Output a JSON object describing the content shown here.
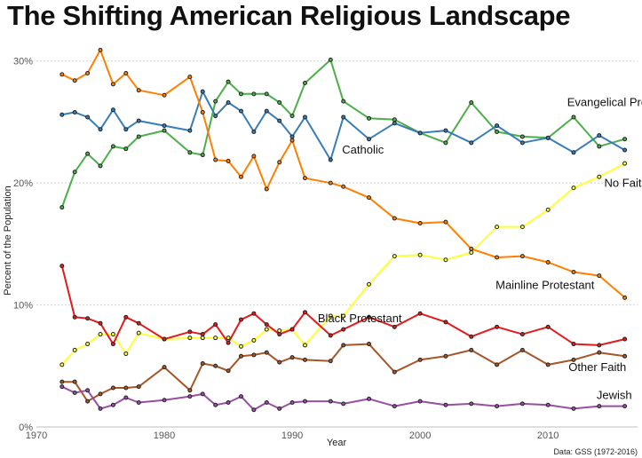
{
  "chart_data": {
    "type": "line",
    "title": "The Shifting American Religious Landscape",
    "xlabel": "Year",
    "ylabel": "Percent of the Population",
    "xlim": [
      1970,
      2017
    ],
    "ylim": [
      0,
      31
    ],
    "x_ticks": [
      {
        "value": 1970,
        "label": "1970"
      },
      {
        "value": 1980,
        "label": "1980"
      },
      {
        "value": 1990,
        "label": "1990"
      },
      {
        "value": 2000,
        "label": "2000"
      },
      {
        "value": 2010,
        "label": "2010"
      }
    ],
    "y_ticks": [
      {
        "value": 0,
        "label": "0%"
      },
      {
        "value": 10,
        "label": "10%"
      },
      {
        "value": 20,
        "label": "20%"
      },
      {
        "value": 30,
        "label": "30%"
      }
    ],
    "caption": "Data: GSS (1972-2016)",
    "legend": "direct labels",
    "x": [
      1972,
      1973,
      1974,
      1975,
      1976,
      1977,
      1978,
      1980,
      1982,
      1983,
      1984,
      1985,
      1986,
      1987,
      1988,
      1989,
      1990,
      1991,
      1993,
      1994,
      1996,
      1998,
      2000,
      2002,
      2004,
      2006,
      2008,
      2010,
      2012,
      2014,
      2016
    ],
    "series": [
      {
        "name": "Evangelical Protestant",
        "color": "#4daf4a",
        "label_year": 2011.5,
        "label_value": 26.3,
        "values": [
          18.0,
          20.9,
          22.4,
          21.4,
          23.0,
          22.8,
          23.8,
          24.3,
          22.5,
          22.3,
          26.7,
          28.3,
          27.3,
          27.3,
          27.3,
          26.6,
          25.5,
          28.2,
          30.1,
          26.7,
          25.3,
          25.2,
          24.1,
          23.3,
          26.6,
          24.2,
          23.8,
          23.7,
          25.4,
          23.0,
          23.6
        ]
      },
      {
        "name": "Catholic",
        "color": "#377eb8",
        "label_year": 1993.9,
        "label_value": 22.4,
        "values": [
          25.6,
          25.8,
          25.4,
          24.4,
          26.0,
          24.4,
          25.1,
          24.7,
          24.3,
          27.5,
          25.5,
          26.6,
          25.9,
          24.2,
          25.9,
          25.1,
          23.8,
          25.4,
          21.9,
          25.4,
          23.6,
          24.9,
          24.1,
          24.3,
          23.3,
          24.7,
          23.3,
          23.7,
          22.5,
          23.9,
          22.7
        ]
      },
      {
        "name": "No Faith",
        "color": "#ffff33",
        "label_year": 2014.4,
        "label_value": 19.7,
        "values": [
          5.1,
          6.3,
          6.8,
          7.6,
          7.6,
          6.0,
          7.7,
          7.2,
          7.3,
          7.3,
          7.3,
          7.3,
          6.6,
          7.1,
          8.0,
          7.9,
          8.0,
          6.7,
          9.1,
          9.1,
          11.7,
          14.0,
          14.1,
          13.7,
          14.3,
          16.4,
          16.4,
          17.8,
          19.6,
          20.5,
          21.6
        ]
      },
      {
        "name": "Mainline Protestant",
        "color": "#ff7f00",
        "label_year": 2005.9,
        "label_value": 11.3,
        "values": [
          28.9,
          28.4,
          29.0,
          30.9,
          28.1,
          29.0,
          27.6,
          27.2,
          28.7,
          25.8,
          21.9,
          21.8,
          20.5,
          22.2,
          19.5,
          21.7,
          23.5,
          20.4,
          20.0,
          19.7,
          18.8,
          17.1,
          16.7,
          16.8,
          14.6,
          13.9,
          14.0,
          13.5,
          12.7,
          12.4,
          10.6
        ]
      },
      {
        "name": "Black Protestant",
        "color": "#e41a1c",
        "label_year": 1992.0,
        "label_value": 8.6,
        "values": [
          13.2,
          9.0,
          8.9,
          8.5,
          6.8,
          9.0,
          8.5,
          7.2,
          7.8,
          7.6,
          8.4,
          6.9,
          8.8,
          9.3,
          8.4,
          7.6,
          8.0,
          9.4,
          7.5,
          8.0,
          9.0,
          8.2,
          9.3,
          8.6,
          7.4,
          8.2,
          7.6,
          8.2,
          6.8,
          6.7,
          7.2
        ]
      },
      {
        "name": "Other Faith",
        "color": "#a65628",
        "label_year": 2011.6,
        "label_value": 4.6,
        "values": [
          3.7,
          3.7,
          2.1,
          2.7,
          3.2,
          3.2,
          3.3,
          4.9,
          3.0,
          5.2,
          5.0,
          4.6,
          5.8,
          5.9,
          6.1,
          5.3,
          5.7,
          5.5,
          5.4,
          6.7,
          6.8,
          4.5,
          5.5,
          5.8,
          6.3,
          5.1,
          6.3,
          5.1,
          5.5,
          6.1,
          5.8
        ]
      },
      {
        "name": "Jewish",
        "color": "#984ea3",
        "label_year": 2013.8,
        "label_value": 2.3,
        "values": [
          3.3,
          2.8,
          3.0,
          1.5,
          1.8,
          2.4,
          2.0,
          2.2,
          2.5,
          2.7,
          1.8,
          2.0,
          2.5,
          1.4,
          2.0,
          1.5,
          2.0,
          2.1,
          2.1,
          1.9,
          2.3,
          1.7,
          2.1,
          1.8,
          1.9,
          1.7,
          1.9,
          1.8,
          1.5,
          1.7,
          1.7
        ]
      }
    ]
  }
}
